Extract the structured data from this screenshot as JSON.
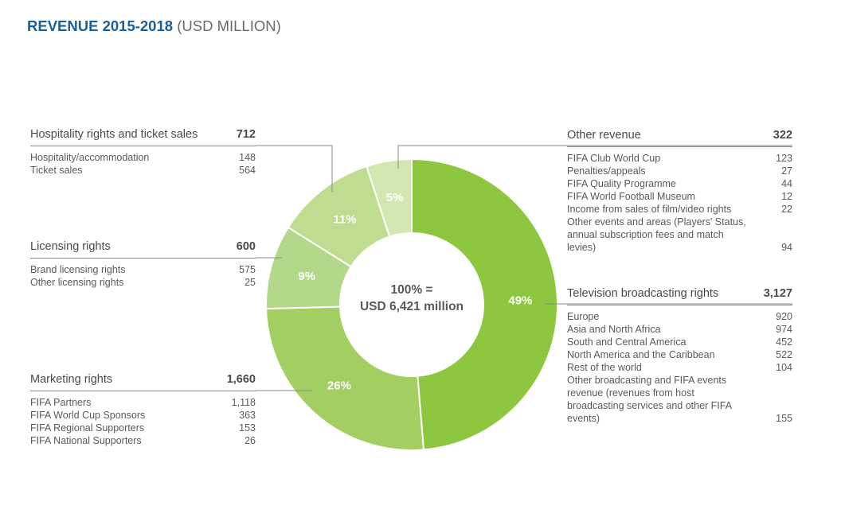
{
  "title": {
    "main": "REVENUE 2015-2018",
    "unit": "(USD MILLION)"
  },
  "colors": {
    "title": "#1b5e9c",
    "slices": [
      "#8dc63f",
      "#a3cf62",
      "#b3d88a",
      "#bedd91",
      "#d3e8b1"
    ],
    "slice_label": "#ffffff",
    "center_text": "#5a5a5a",
    "leader_line": "#8a8a8a"
  },
  "chart_data": {
    "type": "pie",
    "donut": true,
    "center_label": [
      "100% =",
      "USD 6,421 million"
    ],
    "total": 6421,
    "slices": [
      {
        "name": "Television broadcasting rights",
        "value": 3127,
        "label": "49%"
      },
      {
        "name": "Marketing rights",
        "value": 1660,
        "label": "26%"
      },
      {
        "name": "Licensing rights",
        "value": 600,
        "label": "9%"
      },
      {
        "name": "Hospitality rights and ticket sales",
        "value": 712,
        "label": "11%"
      },
      {
        "name": "Other revenue",
        "value": 322,
        "label": "5%"
      }
    ]
  },
  "blocks": {
    "hospitality": {
      "label": "Hospitality rights and ticket sales",
      "total": "712",
      "items": [
        {
          "name": "Hospitality/accommodation",
          "value": "148"
        },
        {
          "name": "Ticket sales",
          "value": "564"
        }
      ]
    },
    "licensing": {
      "label": "Licensing rights",
      "total": "600",
      "items": [
        {
          "name": "Brand licensing rights",
          "value": "575"
        },
        {
          "name": "Other licensing rights",
          "value": "25"
        }
      ]
    },
    "marketing": {
      "label": "Marketing rights",
      "total": "1,660",
      "items": [
        {
          "name": "FIFA Partners",
          "value": "1,118"
        },
        {
          "name": "FIFA World Cup Sponsors",
          "value": "363"
        },
        {
          "name": "FIFA Regional Supporters",
          "value": "153"
        },
        {
          "name": "FIFA National Supporters",
          "value": "26"
        }
      ]
    },
    "other": {
      "label": "Other revenue",
      "total": "322",
      "items": [
        {
          "name": "FIFA Club World Cup",
          "value": "123"
        },
        {
          "name": "Penalties/appeals",
          "value": "27"
        },
        {
          "name": "FIFA Quality Programme",
          "value": "44"
        },
        {
          "name": "FIFA World Football Museum",
          "value": "12"
        },
        {
          "name": "Income from sales of film/video rights",
          "value": "22"
        },
        {
          "name": "Other events and areas (Players' Status, annual subscription fees and match levies)",
          "value": "94"
        }
      ]
    },
    "television": {
      "label": "Television broadcasting rights",
      "total": "3,127",
      "items": [
        {
          "name": "Europe",
          "value": "920"
        },
        {
          "name": "Asia and North Africa",
          "value": "974"
        },
        {
          "name": "South and Central America",
          "value": "452"
        },
        {
          "name": "North America and the Caribbean",
          "value": "522"
        },
        {
          "name": "Rest of the world",
          "value": "104"
        },
        {
          "name": "Other broadcasting and FIFA events revenue (revenues from host broadcasting services and other FIFA events)",
          "value": "155"
        }
      ]
    }
  }
}
